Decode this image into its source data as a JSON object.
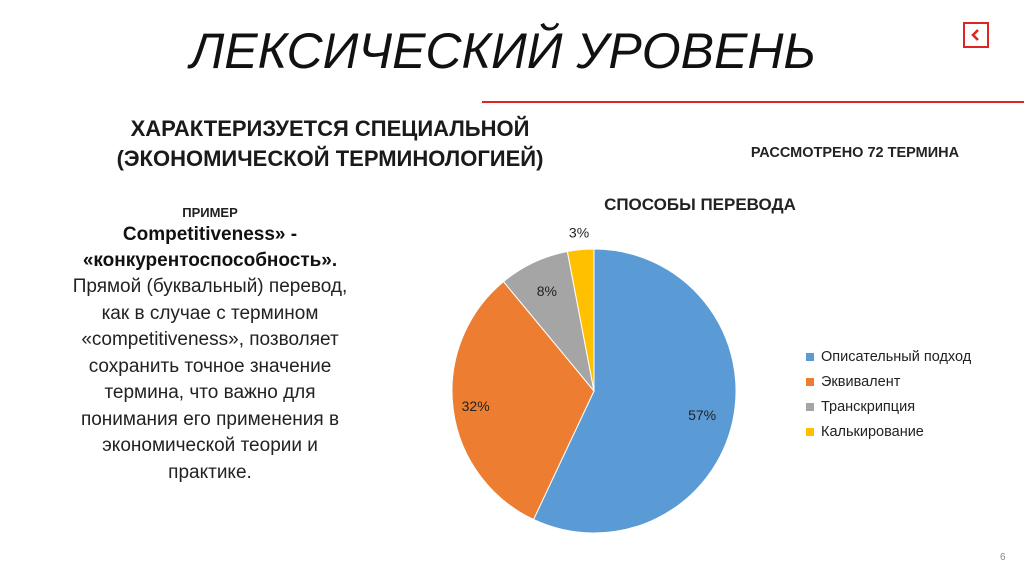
{
  "slide": {
    "title": "ЛЕКСИЧЕСКИЙ УРОВЕНЬ",
    "subtitle_line1": "ХАРАКТЕРИЗУЕТСЯ СПЕЦИАЛЬНОЙ",
    "subtitle_line2": "(ЭКОНОМИЧЕСКОЙ ТЕРМИНОЛОГИЕЙ)",
    "considered": "РАССМОТРЕНО 72 ТЕРМИНА",
    "page_number": "6",
    "accent_color": "#e02424",
    "back_icon": "chevron-left-icon"
  },
  "example": {
    "label": "ПРИМЕР",
    "term_line1": "Competitiveness» -",
    "term_line2": "«конкурентоспособность».",
    "body_lines": [
      "Прямой (буквальный) перевод,",
      "как в случае с термином",
      "«competitiveness», позволяет",
      "сохранить точное значение",
      "термина, что важно для",
      "понимания его применения в",
      "экономической теории и",
      "практике."
    ]
  },
  "chart_data": {
    "type": "pie",
    "title": "СПОСОБЫ ПЕРЕВОДА",
    "legend_position": "right",
    "slices": [
      {
        "name": "Описательный подход",
        "value": 57,
        "label": "57%",
        "color": "#5b9bd5"
      },
      {
        "name": "Эквивалент",
        "value": 32,
        "label": "32%",
        "color": "#ed7d31"
      },
      {
        "name": "Транскрипция",
        "value": 8,
        "label": "8%",
        "color": "#a5a5a5"
      },
      {
        "name": "Калькирование",
        "value": 3,
        "label": "3%",
        "color": "#ffc000"
      }
    ]
  }
}
